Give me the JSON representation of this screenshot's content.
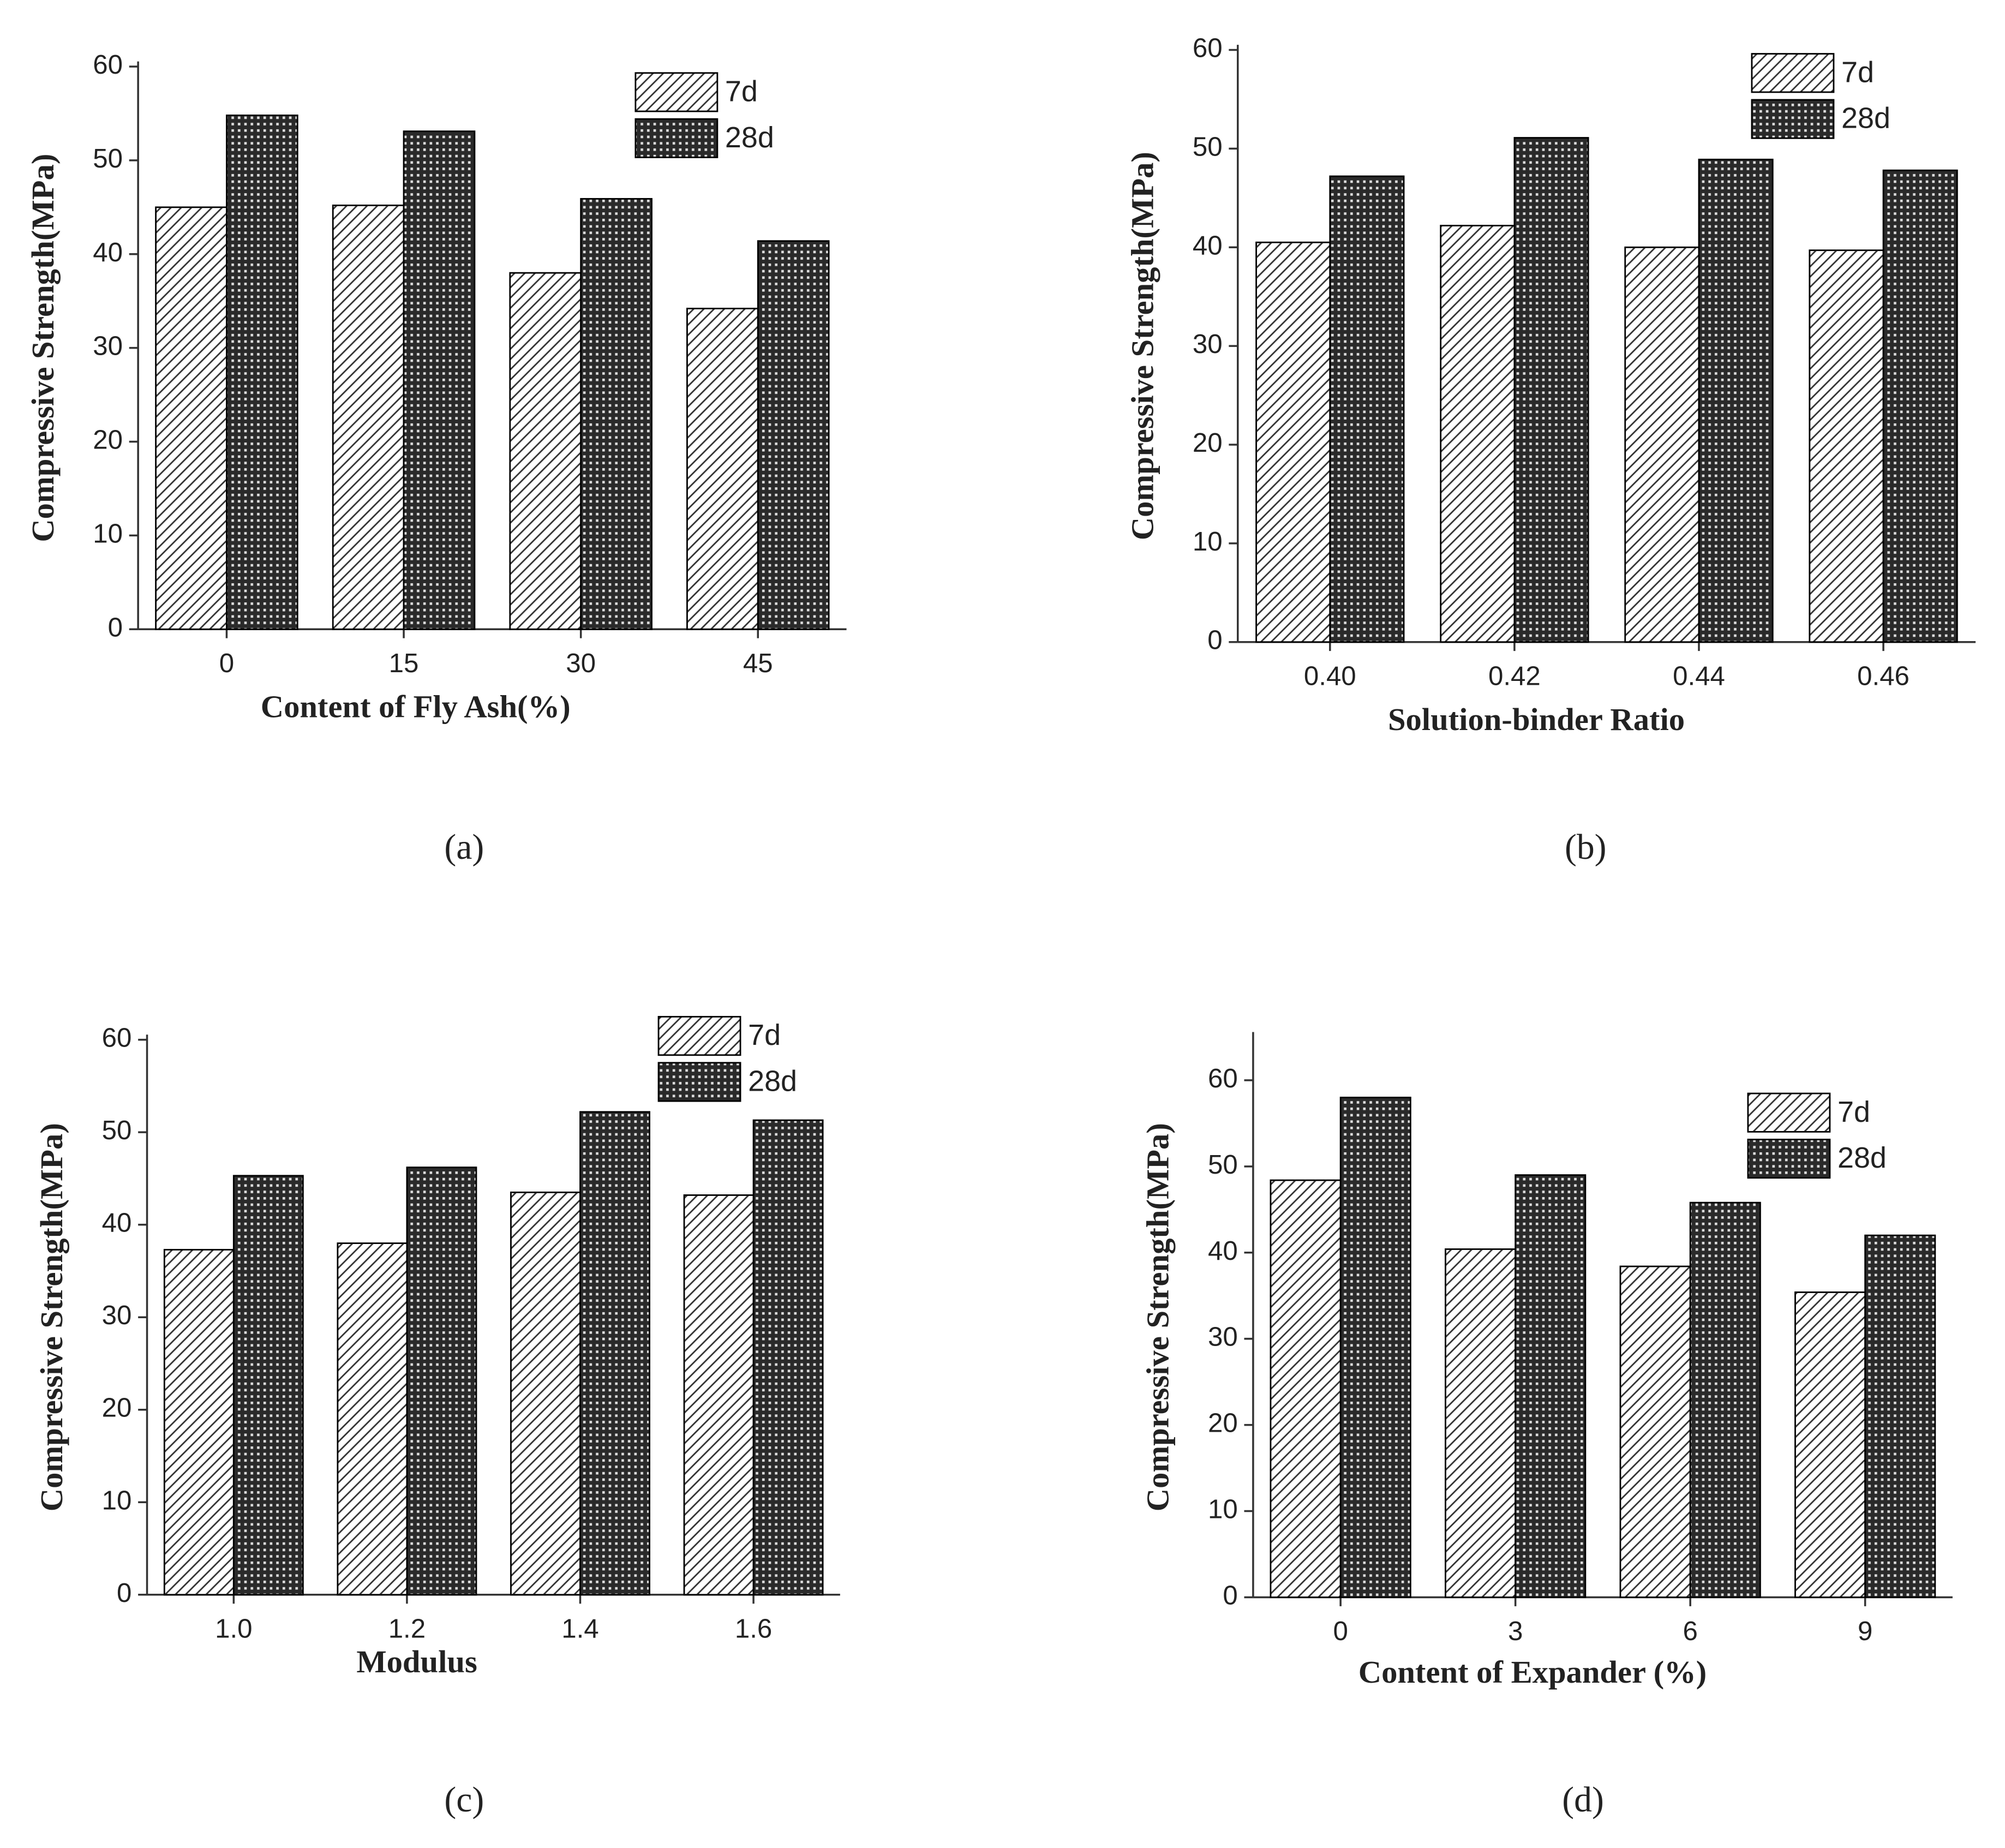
{
  "chart_data": [
    {
      "type": "bar",
      "caption": "(a)",
      "xlabel": "Content of Fly Ash(%)",
      "ylabel": "Compressive Strength(MPa)",
      "categories": [
        "0",
        "15",
        "30",
        "45"
      ],
      "series": [
        {
          "name": "7d",
          "color": "#000000",
          "pattern": "hatch",
          "values": [
            45,
            45.2,
            38,
            34.2
          ]
        },
        {
          "name": "28d",
          "color": "#000000",
          "pattern": "crosshatch",
          "values": [
            54.8,
            53.1,
            45.9,
            41.4
          ]
        }
      ],
      "ylim": [
        0,
        60
      ],
      "yticks": [
        0,
        10,
        20,
        30,
        40,
        50,
        60
      ],
      "legend": "upper right"
    },
    {
      "type": "bar",
      "caption": "(b)",
      "xlabel": "Solution-binder Ratio",
      "ylabel": "Compressive Strength(MPa)",
      "categories": [
        "0.40",
        "0.42",
        "0.44",
        "0.46"
      ],
      "series": [
        {
          "name": "7d",
          "color": "#000000",
          "pattern": "hatch",
          "values": [
            40.5,
            42.2,
            40,
            39.7
          ]
        },
        {
          "name": "28d",
          "color": "#000000",
          "pattern": "crosshatch",
          "values": [
            47.2,
            51.1,
            48.9,
            47.8
          ]
        }
      ],
      "ylim": [
        0,
        60
      ],
      "yticks": [
        0,
        10,
        20,
        30,
        40,
        50,
        60
      ],
      "legend": "upper right"
    },
    {
      "type": "bar",
      "caption": "(c)",
      "xlabel": "Modulus",
      "ylabel": "Compressive Strength(MPa)",
      "categories": [
        "1.0",
        "1.2",
        "1.4",
        "1.6"
      ],
      "series": [
        {
          "name": "7d",
          "color": "#000000",
          "pattern": "hatch",
          "values": [
            37.3,
            38,
            43.5,
            43.2
          ]
        },
        {
          "name": "28d",
          "color": "#000000",
          "pattern": "crosshatch",
          "values": [
            45.3,
            46.2,
            52.2,
            51.3
          ]
        }
      ],
      "ylim": [
        0,
        60
      ],
      "yticks": [
        0,
        10,
        20,
        30,
        40,
        50,
        60
      ],
      "legend": "upper right"
    },
    {
      "type": "bar",
      "caption": "(d)",
      "xlabel": "Content of  Expander (%)",
      "ylabel": "Compressive Strength(MPa)",
      "categories": [
        "0",
        "3",
        "6",
        "9"
      ],
      "series": [
        {
          "name": "7d",
          "color": "#000000",
          "pattern": "hatch",
          "values": [
            48.4,
            40.4,
            38.4,
            35.4
          ]
        },
        {
          "name": "28d",
          "color": "#000000",
          "pattern": "crosshatch",
          "values": [
            58,
            49,
            45.8,
            42
          ]
        }
      ],
      "ylim": [
        0,
        65
      ],
      "yticks": [
        0,
        10,
        20,
        30,
        40,
        50,
        60
      ],
      "legend": "upper right"
    }
  ]
}
